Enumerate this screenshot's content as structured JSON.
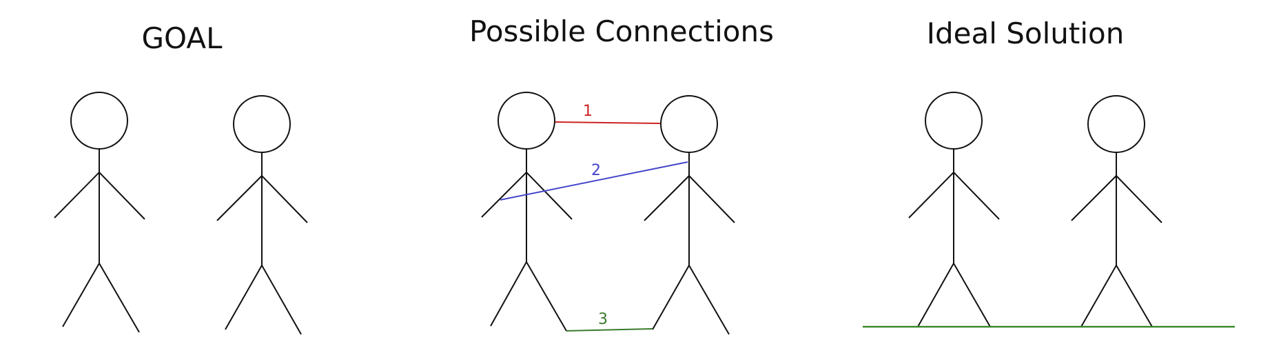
{
  "panels": [
    {
      "title": "GOAL"
    },
    {
      "title": "Possible Connections"
    },
    {
      "title": "Ideal Solution"
    }
  ],
  "connections": [
    {
      "label": "1",
      "color": "#cc2222"
    },
    {
      "label": "2",
      "color": "#4444cc"
    },
    {
      "label": "3",
      "color": "#3a7a2a"
    }
  ],
  "ground": {
    "color": "#3a8a2a"
  },
  "figure_color": "#111111"
}
